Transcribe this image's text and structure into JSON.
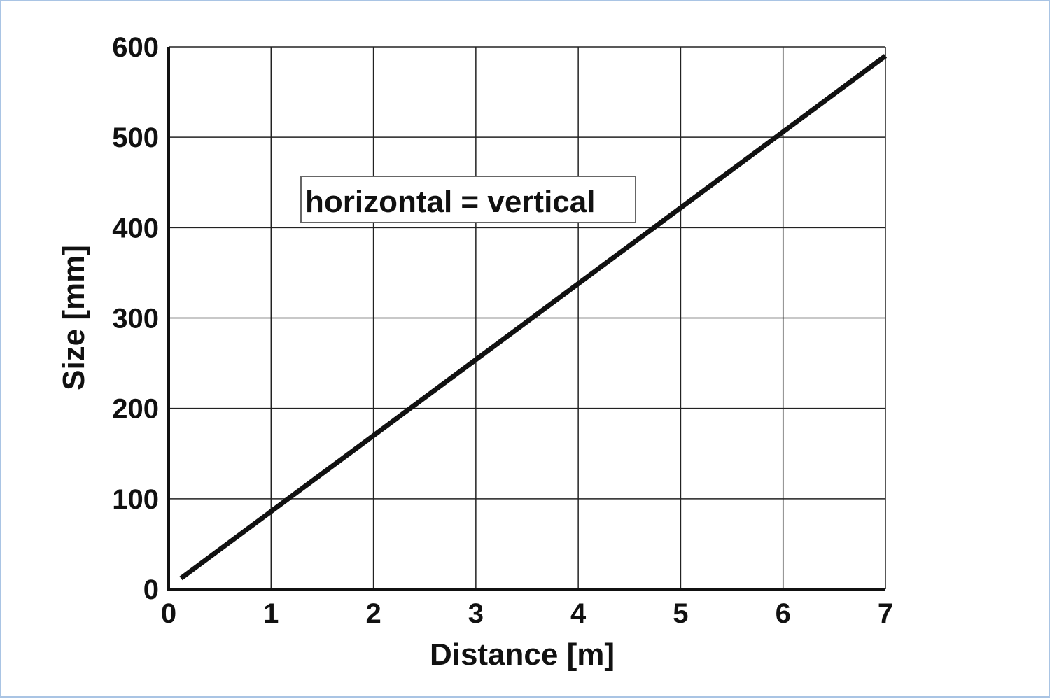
{
  "chart_data": {
    "type": "line",
    "xlabel": "Distance [m]",
    "ylabel": "Size [mm]",
    "xlim": [
      0,
      7
    ],
    "ylim": [
      0,
      600
    ],
    "xticks": [
      "0",
      "1",
      "2",
      "3",
      "4",
      "5",
      "6",
      "7"
    ],
    "yticks": [
      "0",
      "100",
      "200",
      "300",
      "400",
      "500",
      "600"
    ],
    "grid": true,
    "annotation": "horizontal = vertical",
    "series": [
      {
        "x": [
          0.12,
          7.0
        ],
        "y": [
          12,
          590
        ]
      }
    ],
    "line_color": "#111111",
    "frame_color": "#a9c4e4"
  }
}
